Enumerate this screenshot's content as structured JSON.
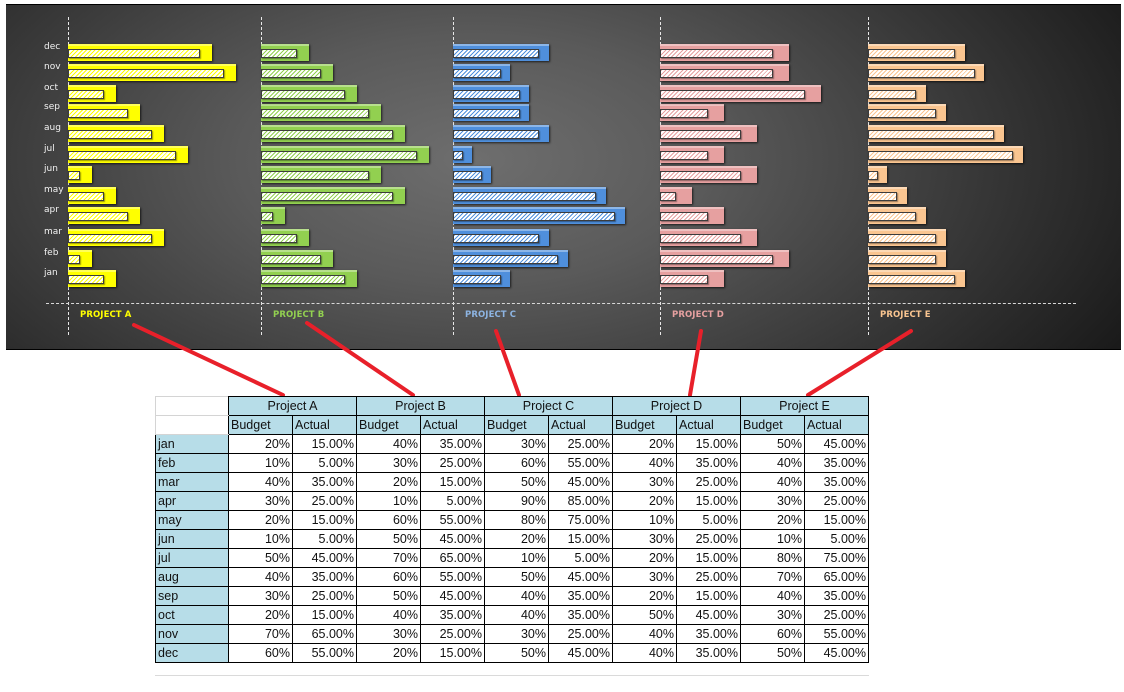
{
  "chart_data": {
    "type": "bar",
    "orientation": "horizontal",
    "title": "",
    "categories": [
      "jan",
      "feb",
      "mar",
      "apr",
      "may",
      "jun",
      "jul",
      "aug",
      "sep",
      "oct",
      "nov",
      "dec"
    ],
    "panels": [
      {
        "name": "PROJECT A",
        "color": "#ffff00",
        "label_color": "#ffff00",
        "budget": [
          20,
          10,
          40,
          30,
          20,
          10,
          50,
          40,
          30,
          20,
          70,
          60
        ],
        "actual": [
          15,
          5,
          35,
          25,
          15,
          5,
          45,
          35,
          25,
          15,
          65,
          55
        ]
      },
      {
        "name": "PROJECT B",
        "color": "#92d050",
        "label_color": "#92d050",
        "budget": [
          40,
          30,
          20,
          10,
          60,
          50,
          70,
          60,
          50,
          40,
          30,
          20
        ],
        "actual": [
          35,
          25,
          15,
          5,
          55,
          45,
          65,
          55,
          45,
          35,
          25,
          15
        ]
      },
      {
        "name": "PROJECT C",
        "color": "#4f8fdc",
        "label_color": "#8db4e2",
        "budget": [
          30,
          60,
          50,
          90,
          80,
          20,
          10,
          50,
          40,
          40,
          30,
          50
        ],
        "actual": [
          25,
          55,
          45,
          85,
          75,
          15,
          5,
          45,
          35,
          35,
          25,
          45
        ]
      },
      {
        "name": "PROJECT D",
        "color": "#e6a0a0",
        "label_color": "#e6a0a0",
        "budget": [
          20,
          40,
          30,
          20,
          10,
          30,
          20,
          30,
          20,
          50,
          40,
          40
        ],
        "actual": [
          15,
          35,
          25,
          15,
          5,
          25,
          15,
          25,
          15,
          45,
          35,
          35
        ]
      },
      {
        "name": "PROJECT E",
        "color": "#fac590",
        "label_color": "#fac590",
        "budget": [
          50,
          40,
          40,
          30,
          20,
          10,
          80,
          70,
          40,
          30,
          60,
          50
        ],
        "actual": [
          45,
          35,
          35,
          25,
          15,
          5,
          75,
          65,
          35,
          25,
          55,
          45
        ]
      }
    ],
    "series": [
      {
        "name": "Budget",
        "style": "solid"
      },
      {
        "name": "Actual",
        "style": "hatched"
      }
    ],
    "xlabel": "",
    "ylabel": "",
    "grid": false,
    "legend": "none",
    "units": "%"
  },
  "table": {
    "projects": [
      "Project A",
      "Project B",
      "Project C",
      "Project D",
      "Project E"
    ],
    "subheaders": [
      "Budget",
      "Actual"
    ],
    "rows": [
      {
        "month": "jan",
        "values": [
          "20%",
          "15.00%",
          "40%",
          "35.00%",
          "30%",
          "25.00%",
          "20%",
          "15.00%",
          "50%",
          "45.00%"
        ]
      },
      {
        "month": "feb",
        "values": [
          "10%",
          "5.00%",
          "30%",
          "25.00%",
          "60%",
          "55.00%",
          "40%",
          "35.00%",
          "40%",
          "35.00%"
        ]
      },
      {
        "month": "mar",
        "values": [
          "40%",
          "35.00%",
          "20%",
          "15.00%",
          "50%",
          "45.00%",
          "30%",
          "25.00%",
          "40%",
          "35.00%"
        ]
      },
      {
        "month": "apr",
        "values": [
          "30%",
          "25.00%",
          "10%",
          "5.00%",
          "90%",
          "85.00%",
          "20%",
          "15.00%",
          "30%",
          "25.00%"
        ]
      },
      {
        "month": "may",
        "values": [
          "20%",
          "15.00%",
          "60%",
          "55.00%",
          "80%",
          "75.00%",
          "10%",
          "5.00%",
          "20%",
          "15.00%"
        ]
      },
      {
        "month": "jun",
        "values": [
          "10%",
          "5.00%",
          "50%",
          "45.00%",
          "20%",
          "15.00%",
          "30%",
          "25.00%",
          "10%",
          "5.00%"
        ]
      },
      {
        "month": "jul",
        "values": [
          "50%",
          "45.00%",
          "70%",
          "65.00%",
          "10%",
          "5.00%",
          "20%",
          "15.00%",
          "80%",
          "75.00%"
        ]
      },
      {
        "month": "aug",
        "values": [
          "40%",
          "35.00%",
          "60%",
          "55.00%",
          "50%",
          "45.00%",
          "30%",
          "25.00%",
          "70%",
          "65.00%"
        ]
      },
      {
        "month": "sep",
        "values": [
          "30%",
          "25.00%",
          "50%",
          "45.00%",
          "40%",
          "35.00%",
          "20%",
          "15.00%",
          "40%",
          "35.00%"
        ]
      },
      {
        "month": "oct",
        "values": [
          "20%",
          "15.00%",
          "40%",
          "35.00%",
          "40%",
          "35.00%",
          "50%",
          "45.00%",
          "30%",
          "25.00%"
        ]
      },
      {
        "month": "nov",
        "values": [
          "70%",
          "65.00%",
          "30%",
          "25.00%",
          "30%",
          "25.00%",
          "40%",
          "35.00%",
          "60%",
          "55.00%"
        ]
      },
      {
        "month": "dec",
        "values": [
          "60%",
          "55.00%",
          "20%",
          "15.00%",
          "50%",
          "45.00%",
          "40%",
          "35.00%",
          "50%",
          "45.00%"
        ]
      }
    ]
  },
  "colors": {
    "connector": "#e8202a",
    "table_header_bg": "#b7dde8"
  }
}
